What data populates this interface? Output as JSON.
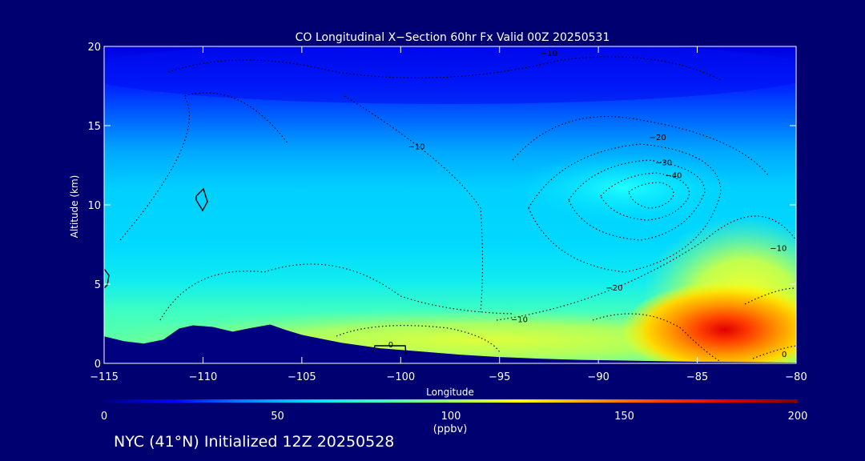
{
  "chart_data": {
    "type": "heatmap",
    "title": "CO Longitudinal X−Section 60hr  Fx Valid 00Z 20250531",
    "xlabel": "Longitude",
    "ylabel": "Altitude (km)",
    "xlim": [
      -115,
      -80
    ],
    "ylim": [
      0,
      20
    ],
    "x_ticks": [
      -115,
      -110,
      -105,
      -100,
      -95,
      -90,
      -85,
      -80
    ],
    "x_tick_labels": [
      "−115",
      "−110",
      "−105",
      "−100",
      "−95",
      "−90",
      "−85",
      "−80"
    ],
    "y_ticks": [
      0,
      5,
      10,
      15,
      20
    ],
    "y_tick_labels": [
      "0",
      "5",
      "10",
      "15",
      "20"
    ],
    "colorbar": {
      "min": 0,
      "max": 200,
      "ticks": [
        0,
        50,
        100,
        150,
        200
      ],
      "tick_labels": [
        "0",
        "50",
        "100",
        "150",
        "200"
      ],
      "label": "(ppbv)",
      "colors": [
        "#000080",
        "#0000ff",
        "#0080ff",
        "#00e0ff",
        "#40ffc0",
        "#a0ff60",
        "#ffff00",
        "#ffa000",
        "#ff4000",
        "#e00000",
        "#800000"
      ]
    },
    "contour_labels": [
      {
        "text": "−10",
        "lon": -92.5,
        "alt": 19.6
      },
      {
        "text": "−10",
        "lon": -99.2,
        "alt": 13.7
      },
      {
        "text": "−20",
        "lon": -87.0,
        "alt": 14.3
      },
      {
        "text": "−30",
        "lon": -86.7,
        "alt": 12.7
      },
      {
        "text": "−40",
        "lon": -86.2,
        "alt": 11.9
      },
      {
        "text": "−20",
        "lon": -89.2,
        "alt": 4.8
      },
      {
        "text": "−10",
        "lon": -94.0,
        "alt": 2.8
      },
      {
        "text": "−10",
        "lon": -80.9,
        "alt": 7.3
      },
      {
        "text": "0",
        "lon": -100.5,
        "alt": 1.2
      },
      {
        "text": "0",
        "lon": -80.6,
        "alt": 0.6
      }
    ],
    "terrain": {
      "lon": [
        -115,
        -114,
        -113,
        -112,
        -111.2,
        -110.5,
        -109.5,
        -108.5,
        -107.7,
        -106.6,
        -105.8,
        -105,
        -103,
        -101,
        -99,
        -97,
        -95,
        -93,
        -91,
        -89,
        -87,
        -85,
        -83,
        -80
      ],
      "alt": [
        1.7,
        1.4,
        1.25,
        1.5,
        2.2,
        2.4,
        2.3,
        2.0,
        2.2,
        2.45,
        2.1,
        1.8,
        1.3,
        0.95,
        0.75,
        0.55,
        0.4,
        0.3,
        0.22,
        0.18,
        0.14,
        0.1,
        0.08,
        0.05
      ]
    }
  },
  "caption": "NYC (41°N) Initialized 12Z 20250528"
}
